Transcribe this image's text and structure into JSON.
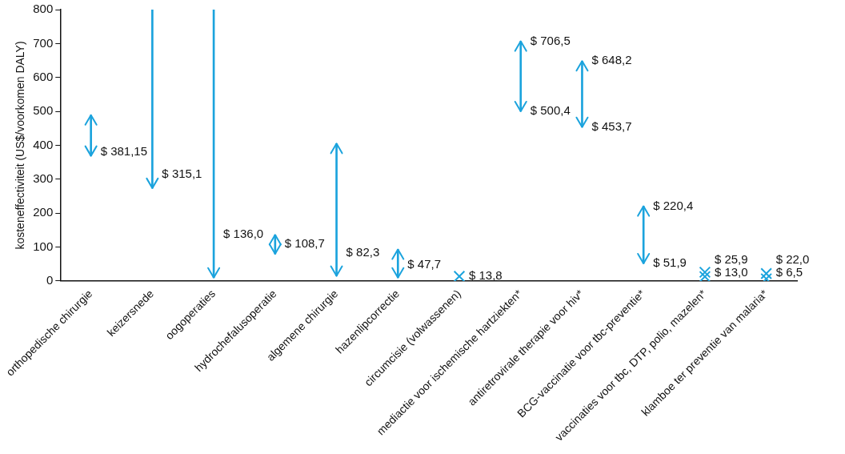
{
  "chart_data": {
    "type": "bar",
    "ylabel": "kosteneffectiviteit (US$/voorkomen DALY)",
    "categories": [
      "orthopedische chirurgie",
      "keizersnede",
      "oogoperaties",
      "hydrochefalusoperatie",
      "algemene chirurgie",
      "hazenlipcorrectie",
      "circumcisie (volwassenen)",
      "mediactie voor ischemische hartziekten*",
      "antiretrovirale therapie voor hiv*",
      "BCG-vaccinatie voor tbc-preventie*",
      "vaccinaties voor tbc, DTP, polio, mazelen*",
      "klamboe ter preventie van malaria*"
    ],
    "series": [
      {
        "color": "#1ba3dd",
        "base": [
          369,
          274,
          10,
          80,
          15,
          10,
          null,
          500.4,
          453.7,
          51.9,
          null,
          null
        ],
        "values": [
          120,
          526,
          790,
          56,
          390,
          83,
          null,
          206.1,
          194.5,
          168.5,
          null,
          null
        ]
      },
      {
        "type": "scatter",
        "color": "#1ba3dd",
        "marker": "cross",
        "x": [
          "circumcisie (volwassenen)",
          "vaccinaties voor tbc, DTP, polio, mazelen*",
          "vaccinaties voor tbc, DTP, polio, mazelen*",
          "klamboe ter preventie van malaria*",
          "klamboe ter preventie van malaria*"
        ],
        "values": [
          13.8,
          13.0,
          25.9,
          6.5,
          22.0
        ],
        "value_labels": [
          "$ 13,8",
          "$ 13,0",
          "$ 25,9",
          "$ 6,5",
          "$ 22,0"
        ]
      }
    ],
    "ylim": [
      0,
      800
    ],
    "yticks": [
      0,
      100,
      200,
      300,
      400,
      500,
      600,
      700,
      800
    ],
    "grid": false,
    "legend": false,
    "annotations": [
      {
        "text": "$ 381,15",
        "x": "orthopedische chirurgie",
        "y": 381.15
      },
      {
        "text": "$ 315,1",
        "x": "keizersnede",
        "y": 315.1
      },
      {
        "text": "$ 136,0",
        "x": "oogoperaties",
        "y": 136
      },
      {
        "text": "$ 108,7",
        "x": "hydrochefalusoperatie",
        "y": 108.7
      },
      {
        "text": "$ 82,3",
        "x": "algemene chirurgie",
        "y": 82.3
      },
      {
        "text": "$ 47,7",
        "x": "hazenlipcorrectie",
        "y": 47.7
      },
      {
        "text": "$ 500,4",
        "x": "mediactie voor ischemische hartziekten*",
        "y": 500.4
      },
      {
        "text": "$ 453,7",
        "x": "antiretrovirale therapie voor hiv*",
        "y": 453.7
      },
      {
        "text": "$ 51,9",
        "x": "BCG-vaccinatie voor tbc-preventie*",
        "y": 51.9
      },
      {
        "text": "$ 706,5",
        "x": "mediactie voor ischemische hartziekten*",
        "y": 706.5
      },
      {
        "text": "$ 648,2",
        "x": "antiretrovirale therapie voor hiv*",
        "y": 648.2
      },
      {
        "text": "$ 220,4",
        "x": "BCG-vaccinatie voor tbc-preventie*",
        "y": 220.4
      }
    ]
  }
}
